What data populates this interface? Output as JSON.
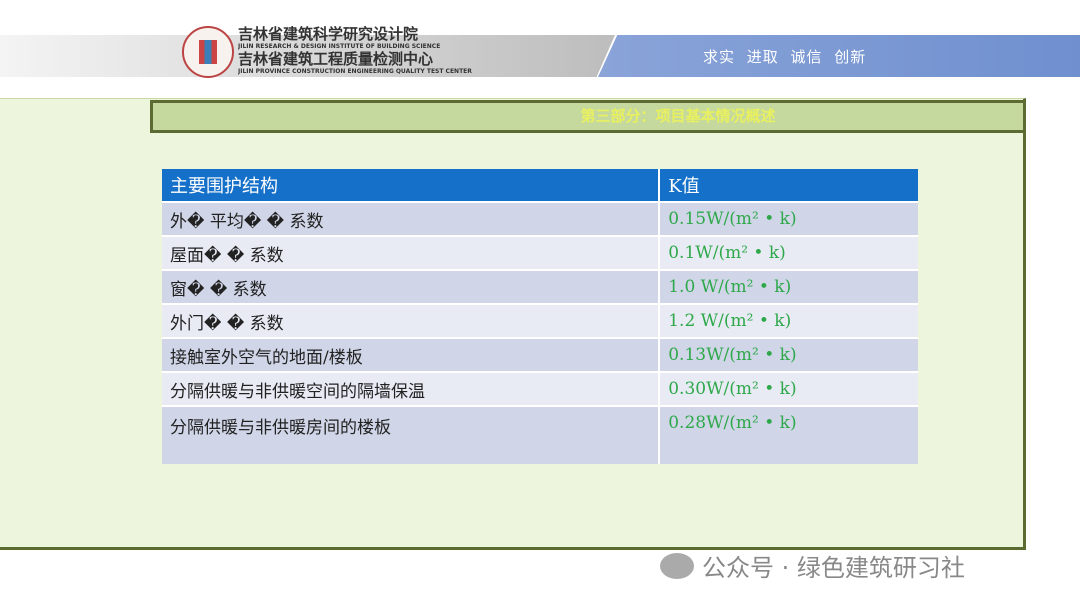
{
  "header": {
    "org_name_1": "吉林省建筑科学研究设计院",
    "org_name_1_en": "JILIN RESEARCH & DESIGN INSTITUTE OF BUILDING SCIENCE",
    "org_name_2": "吉林省建筑工程质量检测中心",
    "org_name_2_en": "JILIN PROVINCE CONSTRUCTION ENGINEERING QUALITY TEST CENTER",
    "slogan": "求实 进取 诚信 创新"
  },
  "section_title": "第三部分：项目基本情况概述",
  "table": {
    "headers": [
      "主要围护结构",
      "K值"
    ],
    "rows": [
      [
        "外� 平均� � 系数",
        "0.15W/(m² • k)"
      ],
      [
        "屋面� � 系数",
        "0.1W/(m² • k)"
      ],
      [
        "窗� � 系数",
        "1.0 W/(m² • k)"
      ],
      [
        "外门� � 系数",
        "1.2 W/(m² • k)"
      ],
      [
        "接触室外空气的地面/楼板",
        "0.13W/(m² • k)"
      ],
      [
        "分隔供暖与非供暖空间的隔墙保温",
        "0.30W/(m² • k)"
      ],
      [
        "分隔供暖与非供暖房间的楼板",
        "0.28W/(m² • k)"
      ]
    ]
  },
  "watermark": "公众号 · 绿色建筑研习社"
}
